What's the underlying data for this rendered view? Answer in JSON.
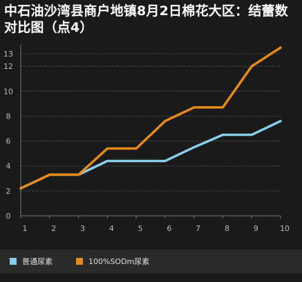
{
  "chart_data": {
    "type": "line",
    "title": "中石油沙湾县商户地镇8月2日棉花大区：结蕾数对比图（点4）",
    "x": [
      1,
      2,
      3,
      4,
      5,
      6,
      7,
      8,
      9,
      10
    ],
    "ylim": [
      0,
      13.5
    ],
    "yticks": [
      0,
      2,
      4,
      6,
      8,
      10,
      12,
      13
    ],
    "xlabel": "",
    "ylabel": "",
    "grid": true,
    "legend_position": "bottom",
    "series": [
      {
        "name": "普通尿素",
        "color": "#87ceeb",
        "values": [
          2.2,
          3.3,
          3.3,
          4.4,
          4.4,
          4.4,
          5.5,
          6.5,
          6.5,
          7.6
        ]
      },
      {
        "name": "100%SODm尿素",
        "color": "#e98a17",
        "values": [
          2.2,
          3.3,
          3.3,
          5.4,
          5.4,
          7.6,
          8.7,
          8.7,
          12.0,
          13.5
        ]
      }
    ]
  }
}
